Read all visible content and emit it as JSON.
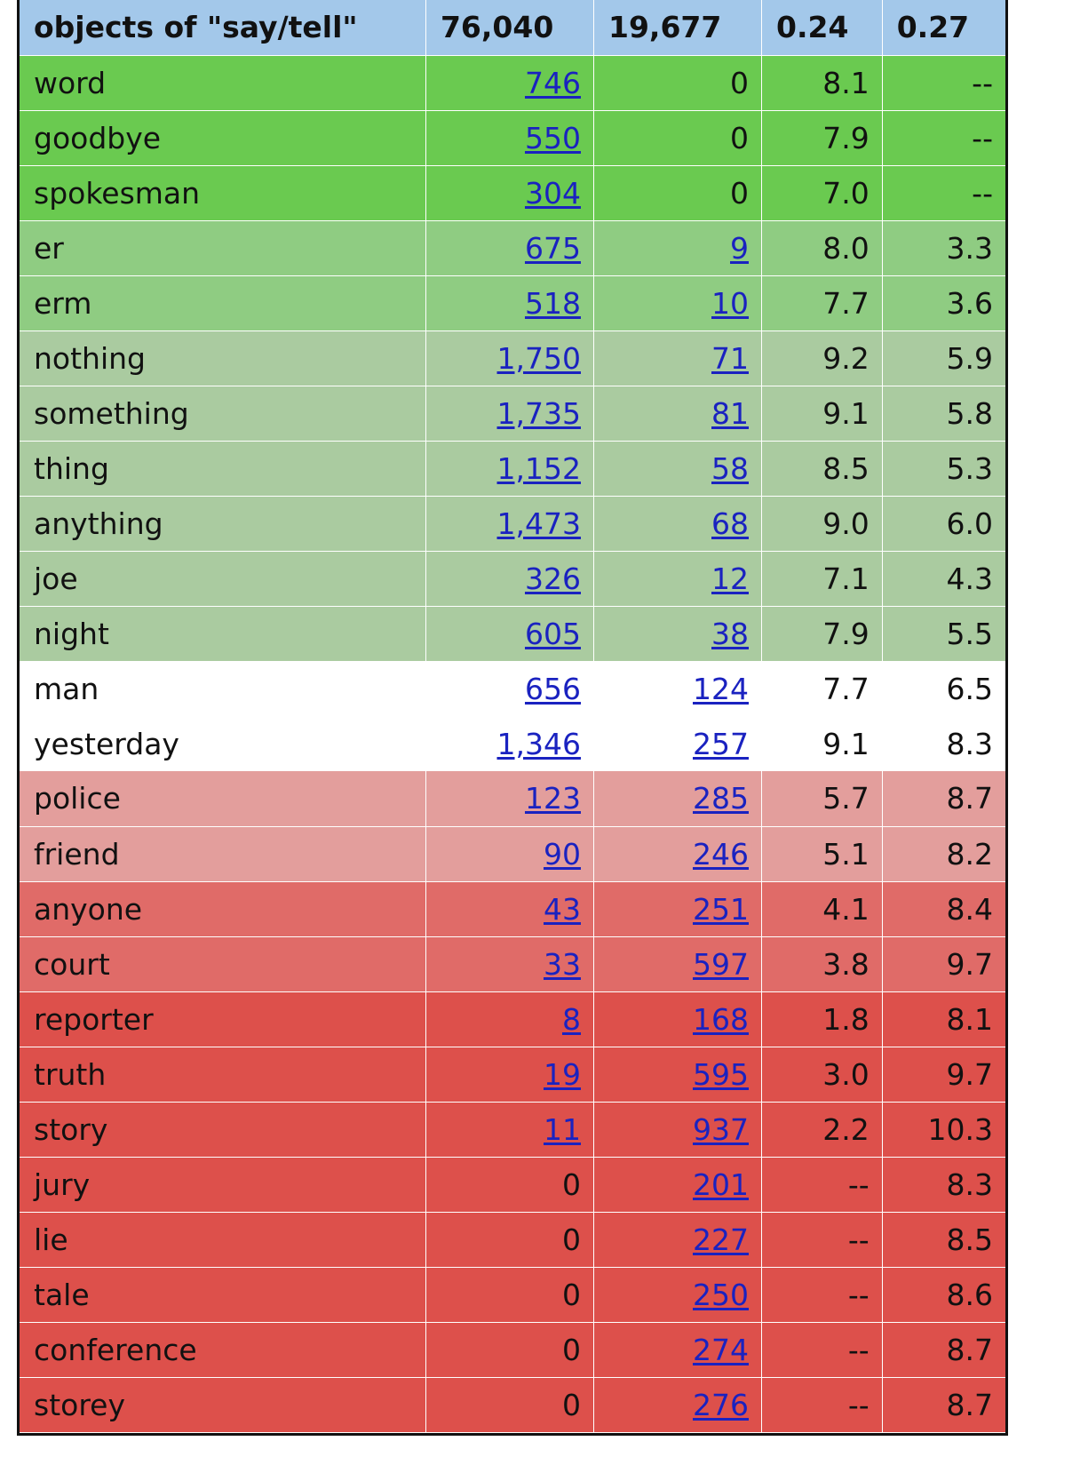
{
  "header": {
    "title": "objects of \"say/tell\"",
    "col1": "76,040",
    "col2": "19,677",
    "col3": "0.24",
    "col4": "0.27"
  },
  "colors": {
    "header": "#a3c8ea",
    "green_strong": "#6aca50",
    "green_mid": "#8fcc82",
    "green_light": "#aacba0",
    "neutral": "#ffffff",
    "red_light": "#e39e9c",
    "red_mid": "#e06b68",
    "red_strong": "#dd504b"
  },
  "rows": [
    {
      "word": "word",
      "c1": "746",
      "c1_link": true,
      "c2": "0",
      "c2_link": false,
      "c3": "8.1",
      "c4": "--",
      "band": "green_strong"
    },
    {
      "word": "goodbye",
      "c1": "550",
      "c1_link": true,
      "c2": "0",
      "c2_link": false,
      "c3": "7.9",
      "c4": "--",
      "band": "green_strong"
    },
    {
      "word": "spokesman",
      "c1": "304",
      "c1_link": true,
      "c2": "0",
      "c2_link": false,
      "c3": "7.0",
      "c4": "--",
      "band": "green_strong"
    },
    {
      "word": "er",
      "c1": "675",
      "c1_link": true,
      "c2": "9",
      "c2_link": true,
      "c3": "8.0",
      "c4": "3.3",
      "band": "green_mid"
    },
    {
      "word": "erm",
      "c1": "518",
      "c1_link": true,
      "c2": "10",
      "c2_link": true,
      "c3": "7.7",
      "c4": "3.6",
      "band": "green_mid"
    },
    {
      "word": "nothing",
      "c1": "1,750",
      "c1_link": true,
      "c2": "71",
      "c2_link": true,
      "c3": "9.2",
      "c4": "5.9",
      "band": "green_light"
    },
    {
      "word": "something",
      "c1": "1,735",
      "c1_link": true,
      "c2": "81",
      "c2_link": true,
      "c3": "9.1",
      "c4": "5.8",
      "band": "green_light"
    },
    {
      "word": "thing",
      "c1": "1,152",
      "c1_link": true,
      "c2": "58",
      "c2_link": true,
      "c3": "8.5",
      "c4": "5.3",
      "band": "green_light"
    },
    {
      "word": "anything",
      "c1": "1,473",
      "c1_link": true,
      "c2": "68",
      "c2_link": true,
      "c3": "9.0",
      "c4": "6.0",
      "band": "green_light"
    },
    {
      "word": "joe",
      "c1": "326",
      "c1_link": true,
      "c2": "12",
      "c2_link": true,
      "c3": "7.1",
      "c4": "4.3",
      "band": "green_light"
    },
    {
      "word": "night",
      "c1": "605",
      "c1_link": true,
      "c2": "38",
      "c2_link": true,
      "c3": "7.9",
      "c4": "5.5",
      "band": "green_light"
    },
    {
      "word": "man",
      "c1": "656",
      "c1_link": true,
      "c2": "124",
      "c2_link": true,
      "c3": "7.7",
      "c4": "6.5",
      "band": "neutral"
    },
    {
      "word": "yesterday",
      "c1": "1,346",
      "c1_link": true,
      "c2": "257",
      "c2_link": true,
      "c3": "9.1",
      "c4": "8.3",
      "band": "neutral"
    },
    {
      "word": "police",
      "c1": "123",
      "c1_link": true,
      "c2": "285",
      "c2_link": true,
      "c3": "5.7",
      "c4": "8.7",
      "band": "red_light"
    },
    {
      "word": "friend",
      "c1": "90",
      "c1_link": true,
      "c2": "246",
      "c2_link": true,
      "c3": "5.1",
      "c4": "8.2",
      "band": "red_light"
    },
    {
      "word": "anyone",
      "c1": "43",
      "c1_link": true,
      "c2": "251",
      "c2_link": true,
      "c3": "4.1",
      "c4": "8.4",
      "band": "red_mid"
    },
    {
      "word": "court",
      "c1": "33",
      "c1_link": true,
      "c2": "597",
      "c2_link": true,
      "c3": "3.8",
      "c4": "9.7",
      "band": "red_mid"
    },
    {
      "word": "reporter",
      "c1": "8",
      "c1_link": true,
      "c2": "168",
      "c2_link": true,
      "c3": "1.8",
      "c4": "8.1",
      "band": "red_strong"
    },
    {
      "word": "truth",
      "c1": "19",
      "c1_link": true,
      "c2": "595",
      "c2_link": true,
      "c3": "3.0",
      "c4": "9.7",
      "band": "red_strong"
    },
    {
      "word": "story",
      "c1": "11",
      "c1_link": true,
      "c2": "937",
      "c2_link": true,
      "c3": "2.2",
      "c4": "10.3",
      "band": "red_strong"
    },
    {
      "word": "jury",
      "c1": "0",
      "c1_link": false,
      "c2": "201",
      "c2_link": true,
      "c3": "--",
      "c4": "8.3",
      "band": "red_strong"
    },
    {
      "word": "lie",
      "c1": "0",
      "c1_link": false,
      "c2": "227",
      "c2_link": true,
      "c3": "--",
      "c4": "8.5",
      "band": "red_strong"
    },
    {
      "word": "tale",
      "c1": "0",
      "c1_link": false,
      "c2": "250",
      "c2_link": true,
      "c3": "--",
      "c4": "8.6",
      "band": "red_strong"
    },
    {
      "word": "conference",
      "c1": "0",
      "c1_link": false,
      "c2": "274",
      "c2_link": true,
      "c3": "--",
      "c4": "8.7",
      "band": "red_strong"
    },
    {
      "word": "storey",
      "c1": "0",
      "c1_link": false,
      "c2": "276",
      "c2_link": true,
      "c3": "--",
      "c4": "8.7",
      "band": "red_strong"
    }
  ]
}
